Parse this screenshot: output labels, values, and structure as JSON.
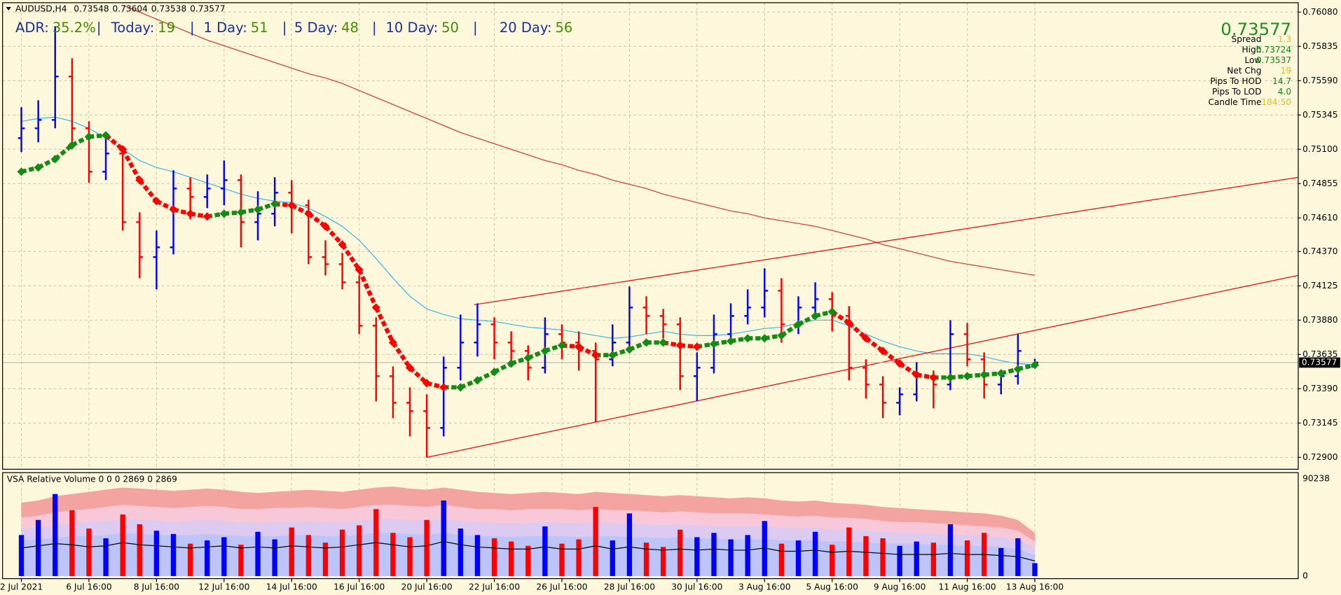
{
  "chart_data": {
    "type": "ohlc",
    "header": {
      "symbol": "AUDUSD,H4"
    },
    "stats": {
      "separator": "|",
      "items": [
        {
          "label": "ADR:",
          "value": "35.2%"
        },
        {
          "label": "Today:",
          "value": 19
        },
        {
          "label": "1 Day:",
          "value": 51
        },
        {
          "label": "5 Day:",
          "value": 48
        },
        {
          "label": "10 Day:",
          "value": 50
        },
        {
          "label": "20 Day:",
          "value": 56
        }
      ]
    },
    "info_panel": {
      "rows": [
        {
          "label": "Spread",
          "value": 1.3,
          "color": "#e8c000"
        },
        {
          "label": "High",
          "value": 0.73724,
          "color": "#0a8a0a"
        },
        {
          "label": "Low",
          "value": 0.73537,
          "color": "#0a8a0a"
        },
        {
          "label": "Net Chg",
          "value": 19,
          "color": "#e8c000"
        },
        {
          "label": "Pips To HOD",
          "value": 14.7,
          "color": "#0a8a0a"
        },
        {
          "label": "Pips To LOD",
          "value": "4.0",
          "color": "#0a8a0a"
        },
        {
          "label": "Candle Time",
          "value": "184:50",
          "color": "#e8c000"
        }
      ]
    },
    "categories": [
      "2 Jul 2021",
      null,
      null,
      null,
      "6 Jul 16:00",
      null,
      null,
      null,
      "8 Jul 16:00",
      null,
      null,
      null,
      "12 Jul 16:00",
      null,
      null,
      null,
      "14 Jul 16:00",
      null,
      null,
      null,
      "16 Jul 16:00",
      null,
      null,
      null,
      "20 Jul 16:00",
      null,
      null,
      null,
      "22 Jul 16:00",
      null,
      null,
      null,
      "26 Jul 16:00",
      null,
      null,
      null,
      "28 Jul 16:00",
      null,
      null,
      null,
      "30 Jul 16:00",
      null,
      null,
      null,
      "3 Aug 16:00",
      null,
      null,
      null,
      "5 Aug 16:00",
      null,
      null,
      null,
      "9 Aug 16:00",
      null,
      null,
      null,
      "11 Aug 16:00",
      null,
      null,
      null,
      "13 Aug 16:00"
    ],
    "open": [
      0.7518,
      0.7525,
      0.7531,
      0.7562,
      0.7525,
      0.7494,
      0.7507,
      0.7458,
      0.7433,
      0.744,
      0.7482,
      0.7476,
      0.7482,
      0.7488,
      0.7458,
      0.7464,
      0.7479,
      0.747,
      0.7433,
      0.7428,
      0.7415,
      0.7384,
      0.7348,
      0.7329,
      0.7323,
      0.7311,
      0.7354,
      0.7372,
      0.7385,
      0.7372,
      0.7366,
      0.7354,
      0.7378,
      0.7372,
      0.7366,
      0.736,
      0.7372,
      0.7397,
      0.7391,
      0.7385,
      0.7348,
      0.7354,
      0.7378,
      0.7391,
      0.7397,
      0.7409,
      0.7385,
      0.7397,
      0.7403,
      0.7391,
      0.7354,
      0.7342,
      0.7329,
      0.7335,
      0.7348,
      0.7342,
      0.7378,
      0.736,
      0.7342,
      0.7348,
      0.73548
    ],
    "high": [
      0.754,
      0.7545,
      0.7598,
      0.7575,
      0.753,
      0.7522,
      0.7512,
      0.7465,
      0.7452,
      0.7495,
      0.749,
      0.7492,
      0.7502,
      0.7492,
      0.748,
      0.749,
      0.7488,
      0.7474,
      0.7445,
      0.7436,
      0.742,
      0.739,
      0.7355,
      0.734,
      0.7335,
      0.7362,
      0.7392,
      0.74,
      0.739,
      0.738,
      0.737,
      0.739,
      0.7385,
      0.738,
      0.7372,
      0.7385,
      0.7412,
      0.7405,
      0.7396,
      0.739,
      0.7365,
      0.7392,
      0.74,
      0.741,
      0.7425,
      0.7418,
      0.7405,
      0.7415,
      0.7408,
      0.7398,
      0.736,
      0.7348,
      0.734,
      0.7358,
      0.7352,
      0.7388,
      0.7386,
      0.7365,
      0.7352,
      0.7378,
      0.73604
    ],
    "low": [
      0.7508,
      0.7515,
      0.7525,
      0.751,
      0.7486,
      0.7488,
      0.7452,
      0.7418,
      0.741,
      0.7435,
      0.746,
      0.7468,
      0.747,
      0.744,
      0.7445,
      0.7455,
      0.745,
      0.7428,
      0.742,
      0.741,
      0.7378,
      0.733,
      0.7318,
      0.7305,
      0.729,
      0.7305,
      0.7345,
      0.7362,
      0.736,
      0.7355,
      0.7345,
      0.735,
      0.736,
      0.7352,
      0.7315,
      0.7355,
      0.7368,
      0.7378,
      0.7375,
      0.7338,
      0.733,
      0.735,
      0.7372,
      0.7385,
      0.739,
      0.7372,
      0.7378,
      0.739,
      0.738,
      0.7345,
      0.7332,
      0.7318,
      0.732,
      0.733,
      0.7325,
      0.7338,
      0.7355,
      0.7332,
      0.7335,
      0.7342,
      0.73538
    ],
    "close": [
      0.7525,
      0.7531,
      0.7562,
      0.7525,
      0.7494,
      0.7507,
      0.7458,
      0.7433,
      0.744,
      0.7482,
      0.7476,
      0.7482,
      0.7488,
      0.7458,
      0.7464,
      0.7479,
      0.747,
      0.7433,
      0.7428,
      0.7415,
      0.7384,
      0.7348,
      0.7329,
      0.7323,
      0.7311,
      0.7354,
      0.7372,
      0.7385,
      0.7372,
      0.7366,
      0.7354,
      0.7378,
      0.7372,
      0.7366,
      0.736,
      0.7372,
      0.7397,
      0.7391,
      0.7385,
      0.7348,
      0.7354,
      0.7378,
      0.7391,
      0.7397,
      0.7409,
      0.7385,
      0.7397,
      0.7403,
      0.7391,
      0.7354,
      0.7342,
      0.7329,
      0.7335,
      0.7348,
      0.7342,
      0.7378,
      0.736,
      0.7342,
      0.7348,
      0.7366,
      0.73577
    ],
    "up_color": "#0000ff",
    "down_color": "#ff0000",
    "ylim": [
      0.72815,
      0.76147
    ],
    "yticks": [
      {
        "value": 0.7608,
        "label": "0.76080"
      },
      {
        "value": 0.75835,
        "label": "0.75835"
      },
      {
        "value": 0.7559,
        "label": "0.75590"
      },
      {
        "value": 0.75345,
        "label": "0.75345"
      },
      {
        "value": 0.751,
        "label": "0.75100"
      },
      {
        "value": 0.74855,
        "label": "0.74855"
      },
      {
        "value": 0.7461,
        "label": "0.74610"
      },
      {
        "value": 0.7437,
        "label": "0.74370"
      },
      {
        "value": 0.74125,
        "label": "0.74125"
      },
      {
        "value": 0.7388,
        "label": "0.73880"
      },
      {
        "value": 0.73635,
        "label": "0.73635"
      },
      {
        "value": 0.7339,
        "label": "0.73390"
      },
      {
        "value": 0.73145,
        "label": "0.73145"
      },
      {
        "value": 0.729,
        "label": "0.72900"
      }
    ],
    "grid": true,
    "ma_fast": {
      "up_color": "#168a16",
      "down_color": "#ff0000",
      "values": [
        0.7494,
        0.7497,
        0.7503,
        0.7513,
        0.7519,
        0.752,
        0.751,
        0.7488,
        0.7473,
        0.7467,
        0.7464,
        0.7462,
        0.7464,
        0.7465,
        0.7467,
        0.7471,
        0.747,
        0.7464,
        0.7455,
        0.7442,
        0.7424,
        0.7397,
        0.7372,
        0.7354,
        0.7343,
        0.734,
        0.734,
        0.7345,
        0.7351,
        0.7357,
        0.7361,
        0.7366,
        0.737,
        0.7369,
        0.7363,
        0.7363,
        0.7367,
        0.7372,
        0.7372,
        0.737,
        0.7369,
        0.7371,
        0.7373,
        0.7375,
        0.7375,
        0.7377,
        0.7385,
        0.7391,
        0.7394,
        0.7386,
        0.7375,
        0.7366,
        0.7357,
        0.7349,
        0.7347,
        0.7347,
        0.7348,
        0.7349,
        0.735,
        0.7353,
        0.7356
      ]
    },
    "ma_mid": {
      "color": "#3cb4e6",
      "values": [
        0.753,
        0.7532,
        0.7533,
        0.753,
        0.7525,
        0.7518,
        0.751,
        0.7502,
        0.7497,
        0.7494,
        0.749,
        0.7486,
        0.7482,
        0.7478,
        0.7475,
        0.7473,
        0.7472,
        0.7468,
        0.7462,
        0.7455,
        0.7445,
        0.7432,
        0.7418,
        0.7405,
        0.7396,
        0.7392,
        0.7389,
        0.7388,
        0.7387,
        0.7385,
        0.7383,
        0.7382,
        0.7381,
        0.7379,
        0.7377,
        0.7375,
        0.7376,
        0.7378,
        0.738,
        0.7378,
        0.7377,
        0.7377,
        0.7378,
        0.738,
        0.7382,
        0.7383,
        0.7386,
        0.7388,
        0.7388,
        0.7384,
        0.7378,
        0.7373,
        0.7369,
        0.7366,
        0.7364,
        0.7364,
        0.7364,
        0.7362,
        0.7359,
        0.7357,
        0.7356
      ]
    },
    "ma_slow": {
      "color": "#e03030",
      "values": [
        null,
        null,
        null,
        null,
        null,
        null,
        0.7613,
        0.7608,
        0.7603,
        0.7598,
        0.7593,
        0.7588,
        0.7584,
        0.758,
        0.7576,
        0.7572,
        0.7568,
        0.7564,
        0.7561,
        0.7557,
        0.7552,
        0.7547,
        0.7542,
        0.7537,
        0.7532,
        0.7527,
        0.7522,
        0.7518,
        0.7514,
        0.751,
        0.7506,
        0.7502,
        0.7499,
        0.7495,
        0.7492,
        0.7488,
        0.7485,
        0.7482,
        0.7478,
        0.7475,
        0.7472,
        0.7469,
        0.7466,
        0.7464,
        0.7461,
        0.7459,
        0.7457,
        0.7455,
        0.7452,
        0.7449,
        0.7446,
        0.7442,
        0.7439,
        0.7436,
        0.7433,
        0.743,
        0.7428,
        0.7426,
        0.7424,
        0.7422,
        0.742
      ]
    },
    "trendlines": [
      {
        "color": "#ff0000",
        "x": [
          24,
          75.6
        ],
        "y": [
          0.729,
          0.742
        ]
      },
      {
        "color": "#ff0000",
        "x": [
          26.8,
          75.6
        ],
        "y": [
          0.7399,
          0.749
        ]
      }
    ],
    "price_line_color": "#b8b8b8",
    "volume": {
      "title": "VSA Relative Volume 0 0 0 2869 0 2869",
      "ylim": [
        0,
        90238
      ],
      "yticks": [
        0,
        90238
      ],
      "values": [
        38000,
        52000,
        76000,
        61000,
        44000,
        35000,
        57000,
        48000,
        42000,
        39000,
        30000,
        33000,
        36000,
        29000,
        41000,
        34000,
        45000,
        38000,
        31000,
        43000,
        47000,
        62000,
        40000,
        36000,
        52000,
        70000,
        44000,
        38000,
        35000,
        32000,
        28000,
        46000,
        30000,
        34000,
        64000,
        33000,
        58000,
        31000,
        27000,
        43000,
        36000,
        40000,
        34000,
        38000,
        51000,
        30000,
        33000,
        41000,
        29000,
        45000,
        37000,
        35000,
        28000,
        32000,
        31000,
        48000,
        33000,
        40000,
        26000,
        35000,
        12000
      ],
      "band_colors": [
        "#f4a4a0",
        "#f8c8d8",
        "#dccaf0",
        "#bcc4f8"
      ],
      "bands": [
        [
          68000,
          70000,
          74000,
          76000,
          78000,
          80000,
          82000,
          81000,
          80000,
          79000,
          80000,
          81000,
          80000,
          78000,
          77000,
          78000,
          79000,
          80000,
          79000,
          78000,
          80000,
          82000,
          83000,
          81000,
          80000,
          82000,
          80000,
          78000,
          77000,
          76000,
          77000,
          78000,
          77000,
          76000,
          78000,
          77000,
          76000,
          75000,
          74000,
          75000,
          74000,
          73000,
          72000,
          73000,
          72000,
          70000,
          69000,
          70000,
          68000,
          67000,
          66000,
          64000,
          63000,
          62000,
          61000,
          60000,
          59000,
          58000,
          56000,
          52000,
          40000
        ],
        [
          54000,
          56000,
          59000,
          61000,
          62000,
          64000,
          66000,
          65000,
          64000,
          63000,
          64000,
          65000,
          64000,
          62000,
          62000,
          63000,
          63000,
          64000,
          63000,
          62000,
          64000,
          66000,
          66000,
          65000,
          64000,
          66000,
          64000,
          62000,
          62000,
          61000,
          62000,
          62000,
          62000,
          61000,
          62000,
          61000,
          61000,
          60000,
          59000,
          60000,
          59000,
          58000,
          58000,
          58000,
          57000,
          56000,
          55000,
          56000,
          54000,
          54000,
          53000,
          51000,
          50000,
          50000,
          49000,
          48000,
          47000,
          46000,
          45000,
          42000,
          32000
        ],
        [
          44000,
          45000,
          47000,
          49000,
          50000,
          51000,
          53000,
          52000,
          51000,
          50000,
          51000,
          52000,
          51000,
          50000,
          49000,
          50000,
          50000,
          51000,
          50000,
          49000,
          51000,
          53000,
          53000,
          52000,
          51000,
          53000,
          51000,
          50000,
          49000,
          49000,
          49000,
          50000,
          49000,
          49000,
          50000,
          49000,
          49000,
          48000,
          47000,
          48000,
          47000,
          46000,
          46000,
          46000,
          46000,
          45000,
          44000,
          45000,
          43000,
          43000,
          42000,
          41000,
          40000,
          40000,
          39000,
          38000,
          38000,
          37000,
          36000,
          34000,
          26000
        ],
        [
          33000,
          34000,
          35000,
          37000,
          37000,
          38000,
          40000,
          39000,
          38000,
          38000,
          38000,
          39000,
          38000,
          37000,
          37000,
          37000,
          38000,
          38000,
          37000,
          37000,
          38000,
          40000,
          40000,
          39000,
          38000,
          40000,
          38000,
          37000,
          37000,
          36000,
          37000,
          37000,
          37000,
          36000,
          37000,
          37000,
          36000,
          36000,
          35000,
          36000,
          35000,
          35000,
          34000,
          34000,
          34000,
          33000,
          33000,
          33000,
          32000,
          32000,
          31000,
          30000,
          30000,
          30000,
          29000,
          29000,
          28000,
          28000,
          27000,
          25000,
          19000
        ]
      ],
      "average_color": "#000000",
      "average": [
        26000,
        28000,
        30000,
        29000,
        27000,
        28000,
        31000,
        29000,
        28000,
        27000,
        26000,
        27000,
        28000,
        26000,
        27000,
        26000,
        28000,
        27000,
        26000,
        27000,
        29000,
        31000,
        29000,
        27000,
        28000,
        32000,
        29000,
        27000,
        26000,
        25000,
        25000,
        27000,
        25000,
        25000,
        28000,
        25000,
        27000,
        25000,
        24000,
        25000,
        24000,
        25000,
        24000,
        24000,
        26000,
        23000,
        23000,
        24000,
        22000,
        23000,
        22000,
        21000,
        20000,
        20000,
        20000,
        21000,
        20000,
        20000,
        19000,
        18000,
        14000
      ]
    }
  }
}
